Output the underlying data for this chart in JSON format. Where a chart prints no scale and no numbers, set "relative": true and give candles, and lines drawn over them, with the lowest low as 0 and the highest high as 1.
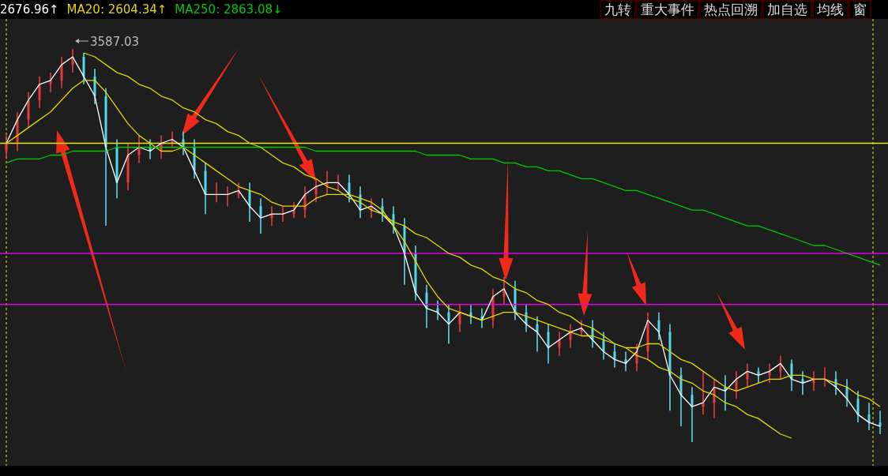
{
  "chart_data": {
    "type": "candlestick",
    "relative": true,
    "legend": "top left",
    "categories": [
      null,
      null,
      null,
      null,
      null,
      null,
      null,
      null,
      null,
      null,
      null,
      null,
      null,
      null,
      null,
      null,
      null,
      null,
      null,
      null,
      null,
      null,
      null,
      null,
      null,
      null,
      null,
      null,
      null,
      null,
      null,
      null,
      null,
      null,
      null,
      null,
      null,
      null,
      null,
      null,
      null,
      null,
      null,
      null,
      null,
      null,
      null,
      null,
      null,
      null,
      null,
      null,
      null,
      null,
      null,
      null,
      null,
      null,
      null,
      null,
      null,
      null,
      null,
      null,
      null,
      null,
      null,
      null,
      null,
      null,
      null,
      null,
      null,
      null,
      null,
      null,
      null,
      null,
      null,
      null
    ],
    "ohlc": [
      [
        0.74,
        0.78,
        0.72,
        0.76
      ],
      [
        0.76,
        0.84,
        0.74,
        0.82
      ],
      [
        0.82,
        0.89,
        0.8,
        0.87
      ],
      [
        0.87,
        0.93,
        0.85,
        0.91
      ],
      [
        0.91,
        0.94,
        0.89,
        0.92
      ],
      [
        0.92,
        0.98,
        0.9,
        0.96
      ],
      [
        0.96,
        1.0,
        0.94,
        0.98
      ],
      [
        0.98,
        0.99,
        0.91,
        0.93
      ],
      [
        0.93,
        0.95,
        0.86,
        0.88
      ],
      [
        0.88,
        0.9,
        0.55,
        0.75
      ],
      [
        0.75,
        0.77,
        0.62,
        0.66
      ],
      [
        0.66,
        0.76,
        0.64,
        0.73
      ],
      [
        0.73,
        0.78,
        0.71,
        0.75
      ],
      [
        0.75,
        0.77,
        0.72,
        0.74
      ],
      [
        0.74,
        0.78,
        0.72,
        0.76
      ],
      [
        0.76,
        0.79,
        0.75,
        0.77
      ],
      [
        0.77,
        0.79,
        0.73,
        0.75
      ],
      [
        0.75,
        0.77,
        0.67,
        0.69
      ],
      [
        0.69,
        0.71,
        0.58,
        0.63
      ],
      [
        0.63,
        0.66,
        0.61,
        0.63
      ],
      [
        0.63,
        0.65,
        0.6,
        0.63
      ],
      [
        0.63,
        0.66,
        0.62,
        0.64
      ],
      [
        0.64,
        0.66,
        0.56,
        0.6
      ],
      [
        0.6,
        0.62,
        0.53,
        0.57
      ],
      [
        0.57,
        0.6,
        0.55,
        0.58
      ],
      [
        0.58,
        0.6,
        0.56,
        0.58
      ],
      [
        0.58,
        0.61,
        0.57,
        0.59
      ],
      [
        0.59,
        0.65,
        0.57,
        0.63
      ],
      [
        0.63,
        0.67,
        0.61,
        0.65
      ],
      [
        0.65,
        0.69,
        0.63,
        0.66
      ],
      [
        0.66,
        0.68,
        0.64,
        0.66
      ],
      [
        0.66,
        0.68,
        0.61,
        0.63
      ],
      [
        0.63,
        0.65,
        0.57,
        0.59
      ],
      [
        0.59,
        0.62,
        0.57,
        0.6
      ],
      [
        0.6,
        0.62,
        0.56,
        0.58
      ],
      [
        0.58,
        0.6,
        0.53,
        0.55
      ],
      [
        0.55,
        0.57,
        0.4,
        0.48
      ],
      [
        0.48,
        0.5,
        0.36,
        0.38
      ],
      [
        0.38,
        0.4,
        0.29,
        0.34
      ],
      [
        0.34,
        0.36,
        0.31,
        0.33
      ],
      [
        0.33,
        0.35,
        0.25,
        0.3
      ],
      [
        0.3,
        0.35,
        0.28,
        0.33
      ],
      [
        0.33,
        0.35,
        0.3,
        0.32
      ],
      [
        0.32,
        0.34,
        0.29,
        0.31
      ],
      [
        0.31,
        0.39,
        0.29,
        0.37
      ],
      [
        0.37,
        0.42,
        0.35,
        0.39
      ],
      [
        0.39,
        0.41,
        0.31,
        0.33
      ],
      [
        0.33,
        0.35,
        0.28,
        0.3
      ],
      [
        0.3,
        0.32,
        0.23,
        0.28
      ],
      [
        0.28,
        0.3,
        0.2,
        0.24
      ],
      [
        0.24,
        0.28,
        0.22,
        0.26
      ],
      [
        0.26,
        0.3,
        0.24,
        0.28
      ],
      [
        0.28,
        0.31,
        0.27,
        0.29
      ],
      [
        0.29,
        0.31,
        0.24,
        0.26
      ],
      [
        0.26,
        0.28,
        0.21,
        0.23
      ],
      [
        0.23,
        0.25,
        0.19,
        0.21
      ],
      [
        0.21,
        0.23,
        0.18,
        0.2
      ],
      [
        0.2,
        0.25,
        0.18,
        0.23
      ],
      [
        0.23,
        0.33,
        0.21,
        0.31
      ],
      [
        0.31,
        0.33,
        0.26,
        0.28
      ],
      [
        0.28,
        0.3,
        0.08,
        0.17
      ],
      [
        0.17,
        0.19,
        0.04,
        0.12
      ],
      [
        0.12,
        0.14,
        0.0,
        0.09
      ],
      [
        0.09,
        0.18,
        0.07,
        0.1
      ],
      [
        0.1,
        0.16,
        0.06,
        0.14
      ],
      [
        0.14,
        0.17,
        0.08,
        0.13
      ],
      [
        0.13,
        0.18,
        0.11,
        0.16
      ],
      [
        0.16,
        0.2,
        0.14,
        0.18
      ],
      [
        0.18,
        0.19,
        0.15,
        0.17
      ],
      [
        0.17,
        0.2,
        0.15,
        0.18
      ],
      [
        0.18,
        0.22,
        0.16,
        0.2
      ],
      [
        0.2,
        0.21,
        0.13,
        0.16
      ],
      [
        0.16,
        0.18,
        0.12,
        0.15
      ],
      [
        0.15,
        0.18,
        0.13,
        0.16
      ],
      [
        0.16,
        0.19,
        0.14,
        0.16
      ],
      [
        0.16,
        0.18,
        0.12,
        0.14
      ],
      [
        0.14,
        0.16,
        0.09,
        0.11
      ],
      [
        0.11,
        0.13,
        0.05,
        0.07
      ],
      [
        0.07,
        0.1,
        0.03,
        0.05
      ],
      [
        0.05,
        0.08,
        0.02,
        0.04
      ]
    ],
    "series": [
      {
        "name": "2676.96↑",
        "type": "line",
        "color": "#ffffff",
        "values": [
          0.76,
          0.82,
          0.87,
          0.91,
          0.92,
          0.96,
          0.98,
          0.93,
          0.88,
          0.75,
          0.66,
          0.73,
          0.75,
          0.74,
          0.76,
          0.77,
          0.75,
          0.69,
          0.63,
          0.63,
          0.63,
          0.64,
          0.6,
          0.57,
          0.58,
          0.58,
          0.59,
          0.63,
          0.65,
          0.66,
          0.66,
          0.63,
          0.59,
          0.6,
          0.58,
          0.55,
          0.48,
          0.38,
          0.34,
          0.33,
          0.3,
          0.33,
          0.32,
          0.31,
          0.37,
          0.39,
          0.33,
          0.3,
          0.28,
          0.24,
          0.26,
          0.28,
          0.29,
          0.26,
          0.23,
          0.21,
          0.2,
          0.23,
          0.31,
          0.28,
          0.17,
          0.12,
          0.09,
          0.1,
          0.14,
          0.13,
          0.16,
          0.18,
          0.17,
          0.18,
          0.2,
          0.16,
          0.15,
          0.16,
          0.16,
          0.14,
          0.11,
          0.07,
          0.05,
          0.04
        ]
      },
      {
        "name": "MA20: 2604.34↑",
        "type": "line",
        "color": "#e6d600",
        "values": [
          0.76,
          0.78,
          0.8,
          0.82,
          0.84,
          0.87,
          0.9,
          0.92,
          0.92,
          0.89,
          0.85,
          0.81,
          0.78,
          0.76,
          0.74,
          0.74,
          0.75,
          0.73,
          0.71,
          0.69,
          0.67,
          0.65,
          0.64,
          0.63,
          0.61,
          0.6,
          0.6,
          0.6,
          0.62,
          0.63,
          0.63,
          0.63,
          0.62,
          0.61,
          0.59,
          0.55,
          0.51,
          0.46,
          0.41,
          0.37,
          0.34,
          0.33,
          0.32,
          0.31,
          0.32,
          0.33,
          0.33,
          0.32,
          0.31,
          0.3,
          0.29,
          0.28,
          0.27,
          0.27,
          0.26,
          0.25,
          0.24,
          0.24,
          0.25,
          0.25,
          0.23,
          0.21,
          0.2,
          0.18,
          0.16,
          0.14,
          0.13,
          0.14,
          0.15,
          0.16,
          0.16,
          0.17,
          0.17,
          0.16,
          0.16,
          0.15,
          0.14,
          0.12,
          0.11,
          0.09
        ]
      },
      {
        "name": "MA250: 2863.08↓",
        "type": "line",
        "color": "#00c800",
        "values": [
          0.71,
          0.72,
          0.72,
          0.72,
          0.73,
          0.73,
          0.74,
          0.74,
          0.74,
          0.74,
          0.75,
          0.75,
          0.75,
          0.75,
          0.75,
          0.75,
          0.75,
          0.75,
          0.75,
          0.75,
          0.75,
          0.75,
          0.75,
          0.75,
          0.75,
          0.75,
          0.75,
          0.75,
          0.74,
          0.74,
          0.74,
          0.74,
          0.74,
          0.74,
          0.74,
          0.74,
          0.74,
          0.74,
          0.73,
          0.73,
          0.73,
          0.73,
          0.72,
          0.72,
          0.72,
          0.71,
          0.71,
          0.7,
          0.7,
          0.69,
          0.69,
          0.68,
          0.67,
          0.67,
          0.66,
          0.65,
          0.64,
          0.64,
          0.63,
          0.62,
          0.61,
          0.6,
          0.59,
          0.59,
          0.58,
          0.57,
          0.56,
          0.55,
          0.55,
          0.54,
          0.53,
          0.52,
          0.51,
          0.5,
          0.5,
          0.49,
          0.48,
          0.47,
          0.46,
          0.45
        ]
      },
      {
        "type": "line",
        "color": "#d8d800",
        "values": [
          null,
          null,
          null,
          null,
          null,
          null,
          null,
          0.99,
          0.98,
          0.96,
          0.94,
          0.93,
          0.91,
          0.9,
          0.88,
          0.87,
          0.85,
          0.84,
          0.82,
          0.81,
          0.79,
          0.78,
          0.76,
          0.75,
          0.73,
          0.71,
          0.7,
          0.68,
          0.67,
          0.65,
          0.64,
          0.62,
          0.61,
          0.59,
          0.58,
          0.56,
          0.55,
          0.53,
          0.52,
          0.5,
          0.48,
          0.47,
          0.45,
          0.44,
          0.42,
          0.41,
          0.39,
          0.38,
          0.36,
          0.35,
          0.33,
          0.32,
          0.3,
          0.29,
          0.27,
          0.25,
          0.24,
          0.22,
          0.21,
          0.19,
          0.18,
          0.16,
          0.15,
          0.13,
          0.12,
          0.1,
          0.09,
          0.07,
          0.06,
          0.04,
          0.02,
          0.01,
          null,
          null,
          null,
          null,
          null,
          null,
          null,
          null
        ]
      }
    ],
    "ref_lines": [
      {
        "axis": "y",
        "value": 0.76,
        "color": "#e8e800"
      },
      {
        "axis": "y",
        "value": 0.48,
        "color": "#e000e0"
      },
      {
        "axis": "y",
        "value": 0.35,
        "color": "#e000e0"
      }
    ],
    "annotations": [
      "3587.03",
      "九转",
      "重大事件",
      "热点回溯",
      "加自选",
      "均线",
      "窗"
    ]
  }
}
